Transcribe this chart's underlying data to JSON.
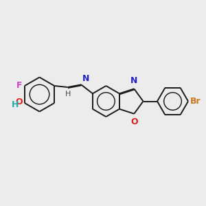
{
  "bg_color": "#ececec",
  "bond_color": "#1a1a1a",
  "dbo": 0.045,
  "lw": 1.4,
  "colors": {
    "F": "#cc44cc",
    "O": "#dd2222",
    "H_teal": "#22aaaa",
    "N": "#2222cc",
    "Br": "#cc7722",
    "H_dark": "#444444"
  },
  "fs": 9
}
